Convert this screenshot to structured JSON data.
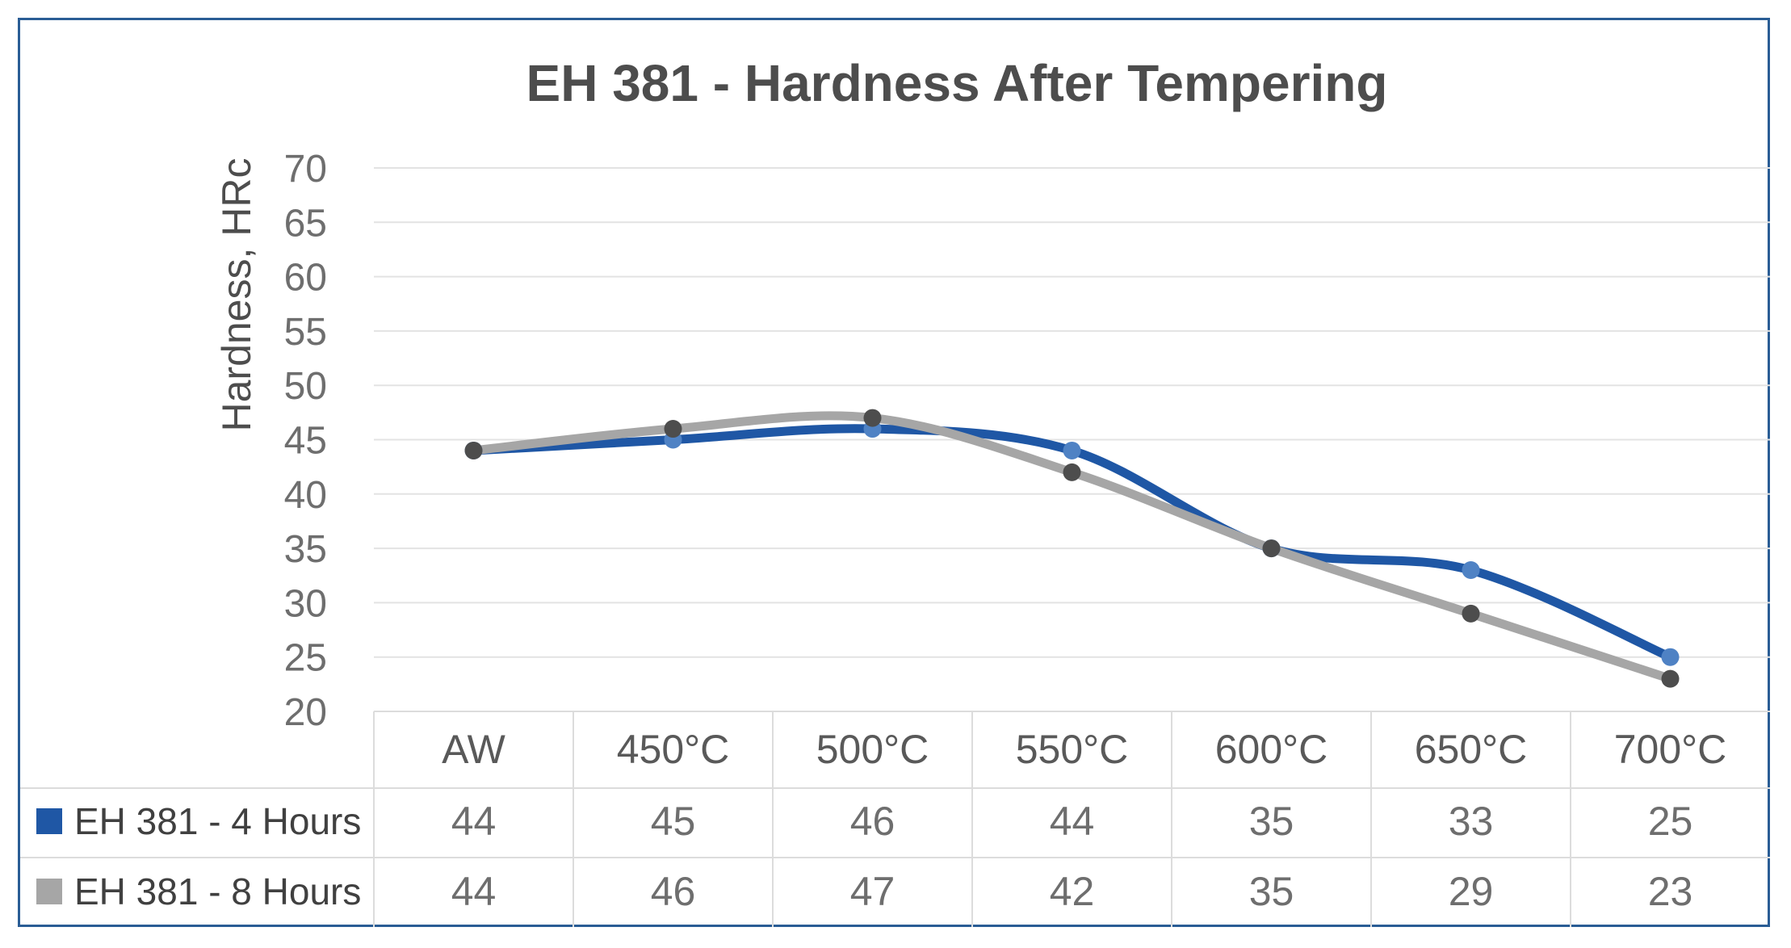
{
  "chart_data": {
    "type": "line",
    "title": "EH 381 - Hardness After Tempering",
    "ylabel": "Hardness, HRc",
    "xlabel": "",
    "ylim": [
      20,
      70
    ],
    "ytick_step": 5,
    "categories": [
      "AW",
      "450°C",
      "500°C",
      "550°C",
      "600°C",
      "650°C",
      "700°C"
    ],
    "series": [
      {
        "name": "EH 381 - 4 Hours",
        "values": [
          44,
          45,
          46,
          44,
          35,
          33,
          25
        ],
        "color": "#1f57a5",
        "marker_color": "#4f82c4"
      },
      {
        "name": "EH 381 - 8 Hours",
        "values": [
          44,
          46,
          47,
          42,
          35,
          29,
          23
        ],
        "color": "#a6a6a6",
        "marker_color": "#4d4d4d"
      }
    ],
    "grid": true,
    "smooth": true,
    "legend": "data-table-below"
  },
  "colors": {
    "frame_border": "#2a5d95"
  }
}
